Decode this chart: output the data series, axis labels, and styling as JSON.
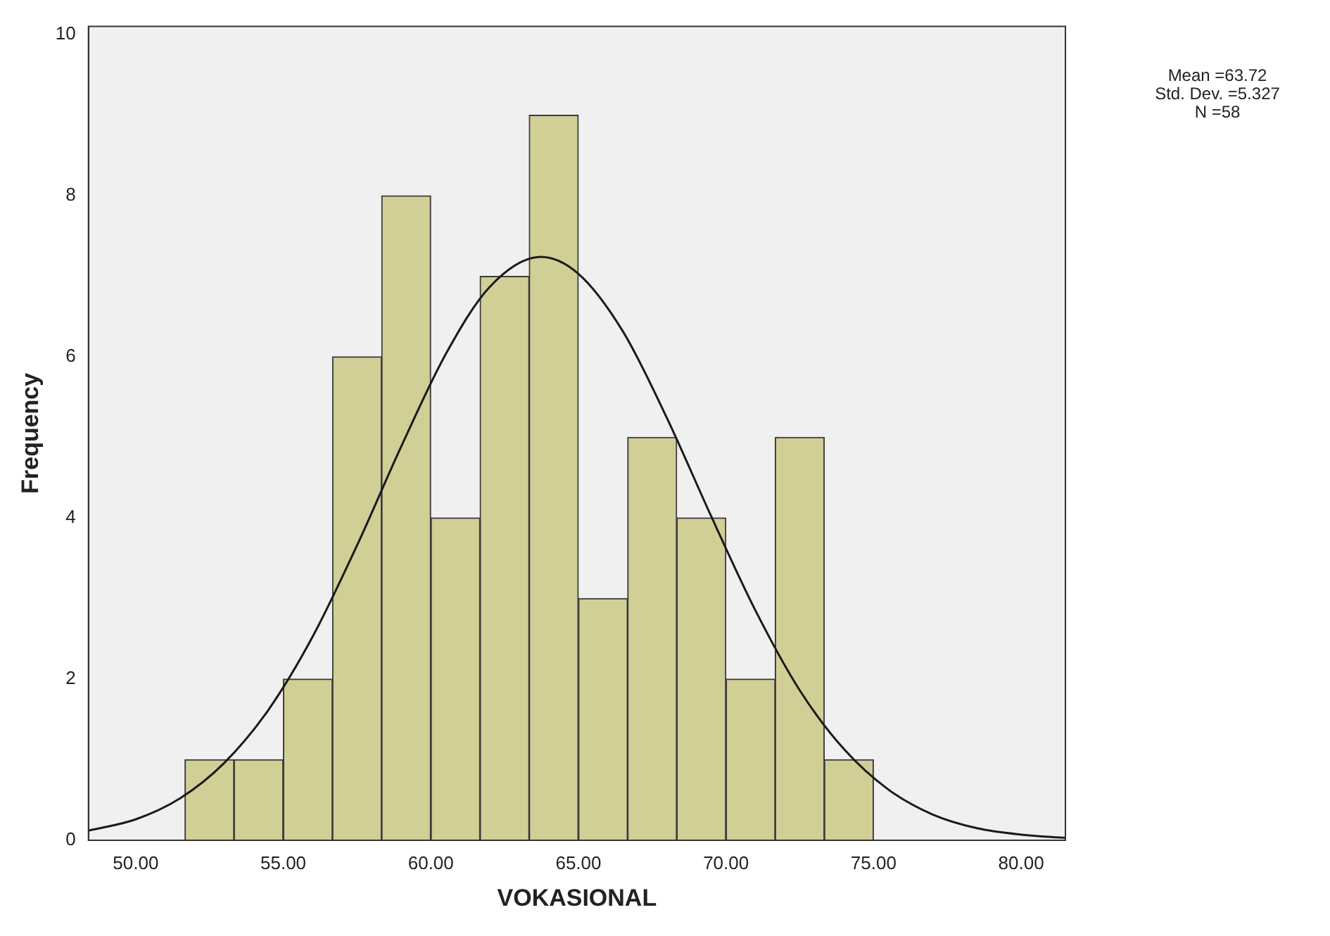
{
  "chart_data": {
    "type": "histogram",
    "xlabel": "VOKASIONAL",
    "ylabel": "Frequency",
    "bins": [
      51.67,
      53.33,
      55,
      56.67,
      58.33,
      60,
      61.67,
      63.33,
      65,
      66.67,
      68.33,
      70,
      71.67,
      73.33,
      75
    ],
    "values": [
      1,
      1,
      2,
      6,
      8,
      4,
      7,
      9,
      3,
      5,
      4,
      2,
      5,
      1
    ],
    "color": "#d2cf96",
    "series": [
      {
        "type": "line",
        "color": "#1a1a1a",
        "marker": "none",
        "x": [
          48.4,
          50,
          51.5,
          53,
          54.5,
          56,
          57.5,
          59,
          60.5,
          62,
          63.72,
          65,
          66.5,
          68,
          69.5,
          71,
          72.5,
          74,
          75.5,
          77,
          78.5,
          80,
          81.5
        ],
        "values": [
          0.12,
          0.26,
          0.52,
          0.96,
          1.62,
          2.53,
          3.66,
          4.89,
          6.03,
          6.87,
          7.24,
          7.03,
          6.32,
          5.24,
          4.02,
          2.85,
          1.86,
          1.13,
          0.63,
          0.32,
          0.15,
          0.07,
          0.03
        ]
      }
    ],
    "xlim": [
      48.4,
      81.5
    ],
    "xticks": [
      {
        "value": 50,
        "label": "50.00"
      },
      {
        "value": 55,
        "label": "55.00"
      },
      {
        "value": 60,
        "label": "60.00"
      },
      {
        "value": 65,
        "label": "65.00"
      },
      {
        "value": 70,
        "label": "70.00"
      },
      {
        "value": 75,
        "label": "75.00"
      },
      {
        "value": 80,
        "label": "80.00"
      }
    ],
    "ylim": [
      0,
      10.1
    ],
    "yticks": [
      0,
      2,
      4,
      6,
      8,
      10
    ],
    "grid": false,
    "legend": false,
    "annotations": [
      "Mean =63.72",
      "Std. Dev. =5.327",
      "N =58"
    ]
  }
}
